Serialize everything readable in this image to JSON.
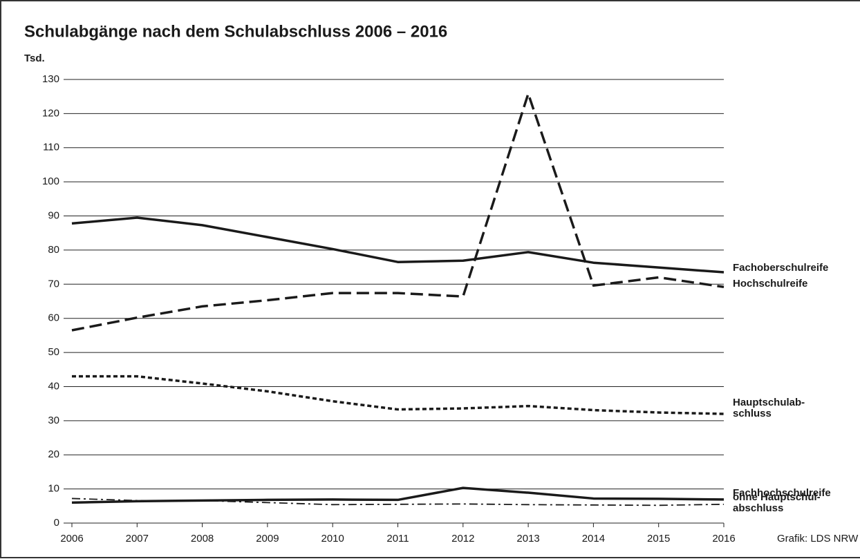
{
  "chart_data": {
    "type": "line",
    "title": "Schulabgänge nach dem Schulabschluss 2006 – 2016",
    "y_label": "Tsd.",
    "source": "Grafik: LDS NRW",
    "x": [
      2006,
      2007,
      2008,
      2009,
      2010,
      2011,
      2012,
      2013,
      2014,
      2015,
      2016
    ],
    "xlim": [
      2006,
      2016
    ],
    "xticks": [
      2006,
      2007,
      2008,
      2009,
      2010,
      2011,
      2012,
      2013,
      2014,
      2015,
      2016
    ],
    "ylim": [
      0,
      130
    ],
    "yticks": [
      0,
      10,
      20,
      30,
      40,
      50,
      60,
      70,
      80,
      90,
      100,
      110,
      120,
      130
    ],
    "grid": true,
    "series": [
      {
        "name": "Fachoberschulreife",
        "color": "#1a1a1a",
        "dash": "solid",
        "width": 3.5,
        "values": [
          87.8,
          89.5,
          87.3,
          83.8,
          80.3,
          76.5,
          76.9,
          79.4,
          76.3,
          74.9,
          73.5
        ]
      },
      {
        "name": "Hochschulreife",
        "color": "#1a1a1a",
        "dash": "long-dash",
        "width": 3.5,
        "values": [
          56.5,
          60.2,
          63.5,
          65.3,
          67.4,
          67.4,
          66.4,
          125.8,
          69.6,
          72.0,
          69.2
        ]
      },
      {
        "name": [
          "Hauptschulab-",
          "schluss"
        ],
        "color": "#1a1a1a",
        "dash": "short-dash",
        "width": 3.5,
        "values": [
          43.0,
          43.0,
          40.9,
          38.6,
          35.7,
          33.3,
          33.6,
          34.3,
          33.1,
          32.4,
          32.0
        ]
      },
      {
        "name": "Fachhochschulreife",
        "color": "#1a1a1a",
        "dash": "solid",
        "width": 3.5,
        "values": [
          6.0,
          6.4,
          6.6,
          6.8,
          6.9,
          6.8,
          10.3,
          8.9,
          7.2,
          7.1,
          6.9
        ]
      },
      {
        "name": [
          "ohne Hauptschul-",
          "abschluss"
        ],
        "color": "#1a1a1a",
        "dash": "dash-dot",
        "width": 1.8,
        "values": [
          7.2,
          6.6,
          6.6,
          6.0,
          5.4,
          5.5,
          5.6,
          5.4,
          5.3,
          5.2,
          5.5
        ]
      }
    ]
  }
}
